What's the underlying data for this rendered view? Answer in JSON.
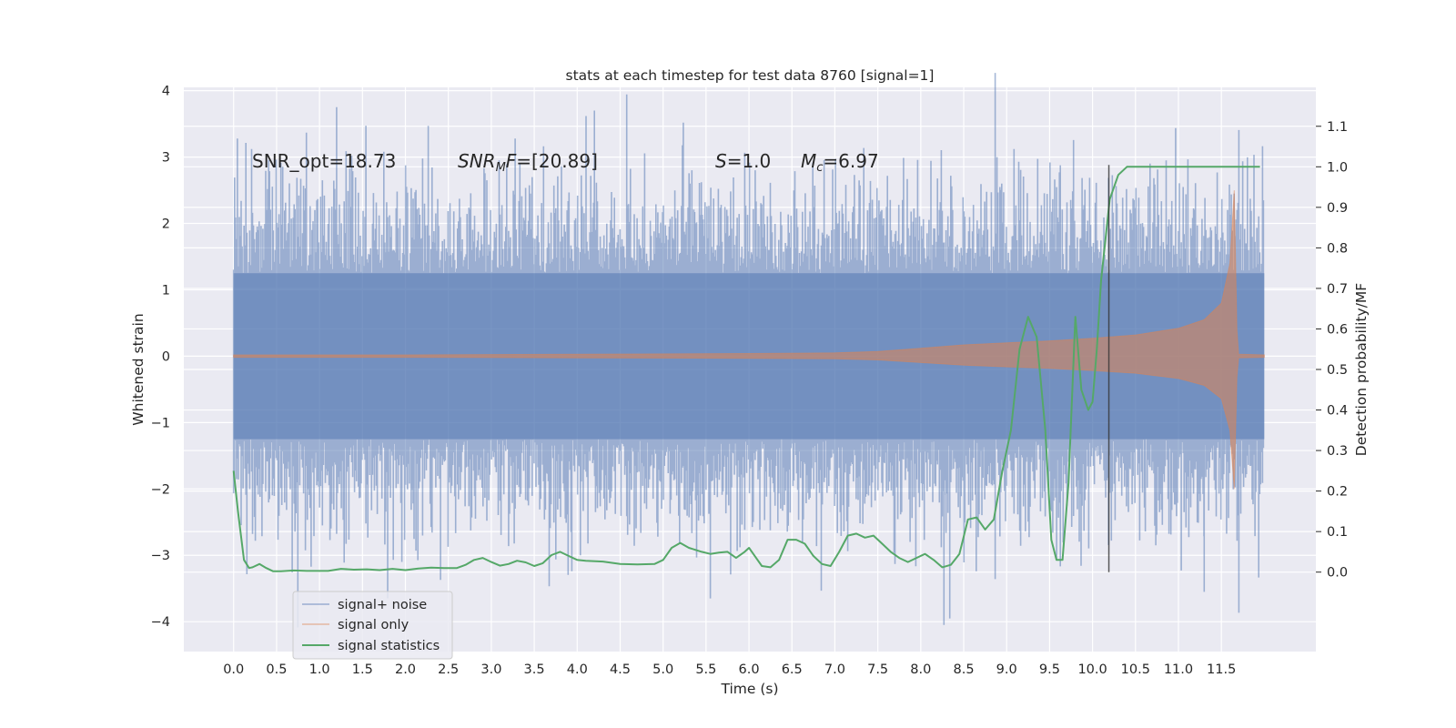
{
  "chart_data": {
    "type": "line",
    "title": "stats at each timestep for test data 8760 [signal=1]",
    "xlabel": "Time (s)",
    "ylabel_left": "Whitened strain",
    "ylabel_right": "Detection probability/MF",
    "xlim": [
      -0.58,
      12.6
    ],
    "ylim_left": [
      -4.45,
      4.05
    ],
    "ylim_right": [
      -0.196,
      1.196
    ],
    "x_ticks": [
      "0.0",
      "0.5",
      "1.0",
      "1.5",
      "2.0",
      "2.5",
      "3.0",
      "3.5",
      "4.0",
      "4.5",
      "5.0",
      "5.5",
      "6.0",
      "6.5",
      "7.0",
      "7.5",
      "8.0",
      "8.5",
      "9.0",
      "9.5",
      "10.0",
      "10.5",
      "11.0",
      "11.5"
    ],
    "y_ticks_left": [
      "4",
      "3",
      "2",
      "1",
      "0",
      "−1",
      "−2",
      "−3",
      "−4"
    ],
    "y_ticks_right": [
      "1.1",
      "1.0",
      "0.9",
      "0.8",
      "0.7",
      "0.6",
      "0.5",
      "0.4",
      "0.3",
      "0.2",
      "0.1",
      "0.0"
    ],
    "grid": true,
    "legend_placement": "lower-left",
    "annotations": [
      {
        "text": "SNR_opt=18.73",
        "x": 0.2,
        "y": 2.9
      },
      {
        "text": "SNR_MF=[20.89]",
        "x": 2.6,
        "y": 2.9
      },
      {
        "text": "S=1.0",
        "x": 5.6,
        "y": 2.9
      },
      {
        "text": "M_c=6.97",
        "x": 6.6,
        "y": 2.9
      }
    ],
    "marker_line": {
      "x": 10.19,
      "y_range_right": [
        0.0,
        1.0
      ]
    },
    "series": [
      {
        "name": "signal+ noise",
        "axis": "left",
        "color": "#4c72b0",
        "kind": "noise-envelope",
        "time_range": [
          0.0,
          12.0
        ],
        "typical_amplitude": 1.5,
        "extremes": [
          {
            "x": 4.2,
            "y": 3.7
          },
          {
            "x": 5.55,
            "y": -3.65
          },
          {
            "x": 8.27,
            "y": -4.05
          },
          {
            "x": 11.3,
            "y": -3.55
          }
        ]
      },
      {
        "name": "signal only",
        "axis": "left",
        "color": "#dd8452",
        "kind": "chirp-envelope",
        "x": [
          0.0,
          2.0,
          4.0,
          6.0,
          7.0,
          7.5,
          8.0,
          8.5,
          9.0,
          9.5,
          10.0,
          10.5,
          11.0,
          11.3,
          11.5,
          11.6,
          11.65,
          11.68,
          11.7,
          12.0
        ],
        "amplitude": [
          0.02,
          0.02,
          0.03,
          0.04,
          0.05,
          0.07,
          0.12,
          0.17,
          0.2,
          0.23,
          0.27,
          0.32,
          0.42,
          0.55,
          0.8,
          1.4,
          2.5,
          0.4,
          0.03,
          0.02
        ]
      },
      {
        "name": "signal statistics",
        "axis": "right",
        "color": "#55a868",
        "x": [
          0.0,
          0.05,
          0.12,
          0.18,
          0.22,
          0.3,
          0.38,
          0.46,
          0.55,
          0.7,
          0.85,
          1.0,
          1.1,
          1.25,
          1.4,
          1.55,
          1.7,
          1.85,
          2.0,
          2.15,
          2.3,
          2.45,
          2.6,
          2.7,
          2.8,
          2.9,
          3.0,
          3.1,
          3.2,
          3.3,
          3.4,
          3.5,
          3.6,
          3.7,
          3.8,
          3.9,
          4.0,
          4.1,
          4.3,
          4.5,
          4.7,
          4.9,
          5.0,
          5.1,
          5.2,
          5.3,
          5.45,
          5.55,
          5.65,
          5.75,
          5.85,
          5.95,
          6.0,
          6.05,
          6.15,
          6.25,
          6.35,
          6.45,
          6.55,
          6.65,
          6.75,
          6.85,
          6.95,
          7.05,
          7.15,
          7.25,
          7.35,
          7.45,
          7.55,
          7.65,
          7.75,
          7.85,
          7.95,
          8.05,
          8.15,
          8.25,
          8.35,
          8.45,
          8.55,
          8.65,
          8.75,
          8.85,
          8.95,
          9.05,
          9.15,
          9.25,
          9.35,
          9.45,
          9.52,
          9.58,
          9.65,
          9.72,
          9.8,
          9.87,
          9.95,
          10.0,
          10.05,
          10.1,
          10.2,
          10.3,
          10.4,
          10.5,
          10.7,
          11.0,
          11.5,
          11.95
        ],
        "y": [
          0.25,
          0.15,
          0.03,
          0.01,
          0.012,
          0.02,
          0.01,
          0.002,
          0.002,
          0.004,
          0.003,
          0.003,
          0.003,
          0.008,
          0.006,
          0.007,
          0.005,
          0.008,
          0.005,
          0.009,
          0.011,
          0.01,
          0.01,
          0.018,
          0.03,
          0.035,
          0.025,
          0.016,
          0.02,
          0.028,
          0.024,
          0.015,
          0.022,
          0.042,
          0.05,
          0.04,
          0.03,
          0.028,
          0.026,
          0.02,
          0.019,
          0.02,
          0.03,
          0.06,
          0.072,
          0.06,
          0.05,
          0.045,
          0.048,
          0.05,
          0.035,
          0.05,
          0.06,
          0.045,
          0.015,
          0.012,
          0.03,
          0.08,
          0.08,
          0.07,
          0.04,
          0.02,
          0.015,
          0.05,
          0.09,
          0.095,
          0.085,
          0.09,
          0.07,
          0.05,
          0.035,
          0.025,
          0.035,
          0.045,
          0.03,
          0.012,
          0.018,
          0.045,
          0.13,
          0.135,
          0.105,
          0.13,
          0.25,
          0.35,
          0.55,
          0.63,
          0.58,
          0.35,
          0.08,
          0.03,
          0.03,
          0.22,
          0.63,
          0.45,
          0.4,
          0.42,
          0.55,
          0.72,
          0.92,
          0.98,
          1.0,
          1.0,
          1.0,
          1.0,
          1.0,
          1.0
        ]
      }
    ]
  }
}
